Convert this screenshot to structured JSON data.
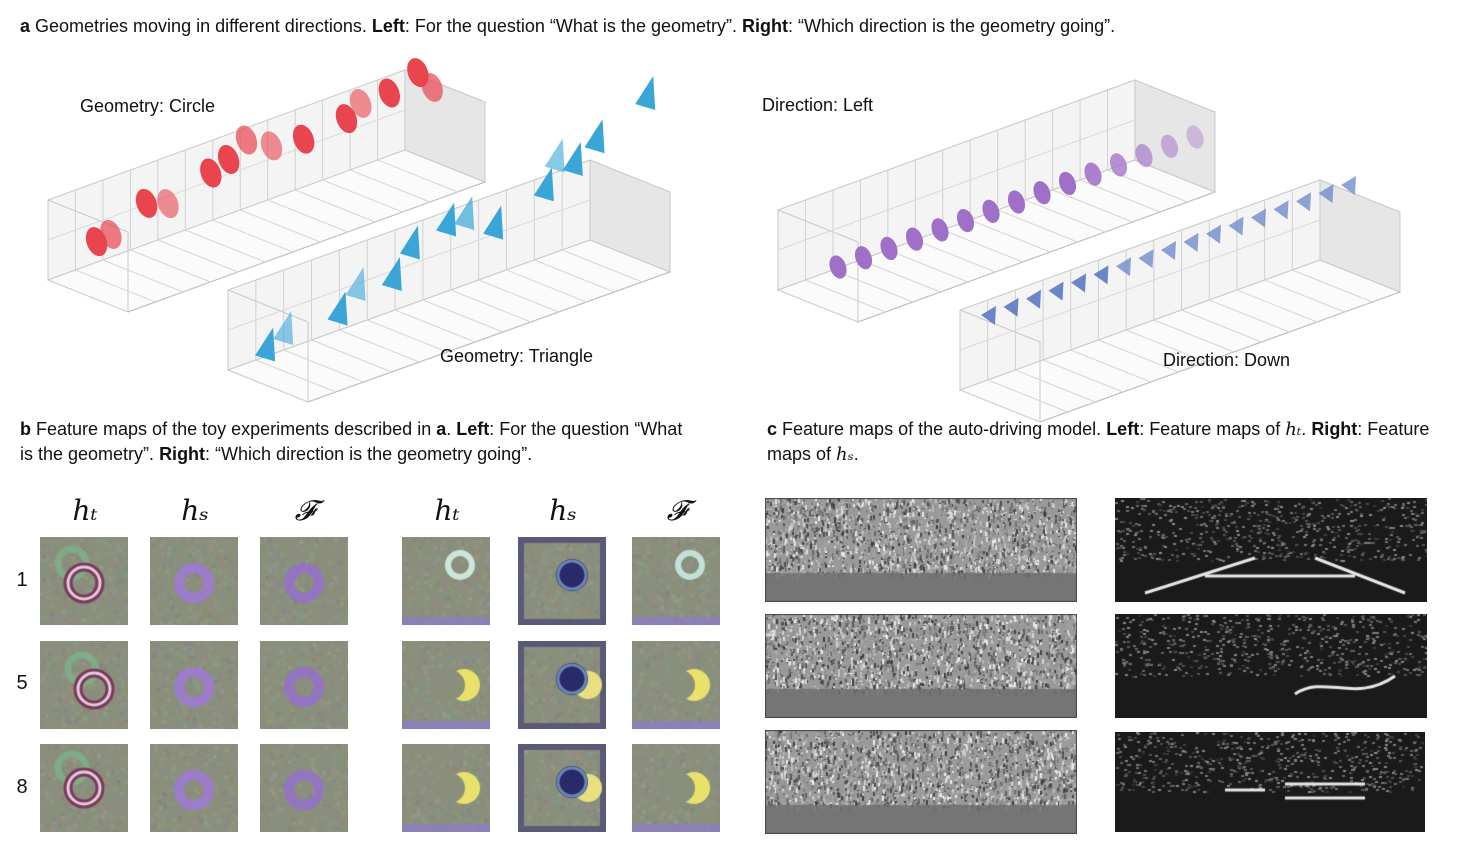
{
  "panel_a": {
    "letter": "a",
    "text1": " Geometries moving in different directions. ",
    "left_word": "Left",
    "text2": ": For the question “What is the geometry”. ",
    "right_word": "Right",
    "text3": ": “Which direction is the geometry going”.",
    "labels": {
      "circle": "Geometry: Circle",
      "triangle": "Geometry: Triangle",
      "left": "Direction: Left",
      "down": "Direction: Down"
    },
    "colors": {
      "circle": "#e8454f",
      "triangle": "#3aa6d8",
      "left": "#a070c8",
      "down": "#6a86c8"
    }
  },
  "panel_b": {
    "letter": "b",
    "text1": " Feature maps of the toy experiments described in ",
    "ref": "a",
    "text2": ". ",
    "left_word": "Left",
    "text3": ": For the question “What is the geometry”. ",
    "right_word": "Right",
    "text4": ": “Which direction is the geometry going”.",
    "col_headers": [
      "h_t",
      "h_s",
      "F",
      "h_t",
      "h_s",
      "F"
    ],
    "col_header_glyphs": {
      "ht": "hₜ",
      "hs": "hₛ",
      "F": "𝓕"
    },
    "rows": [
      "1",
      "5",
      "8"
    ]
  },
  "panel_c": {
    "letter": "c",
    "text1": " Feature maps of the auto-driving model. ",
    "left_word": "Left",
    "text2": ": Feature maps of ",
    "ht": "hₜ",
    "text3": ". ",
    "right_word": "Right",
    "text4": ": Feature maps of ",
    "hs": "hₛ",
    "text5": "."
  }
}
